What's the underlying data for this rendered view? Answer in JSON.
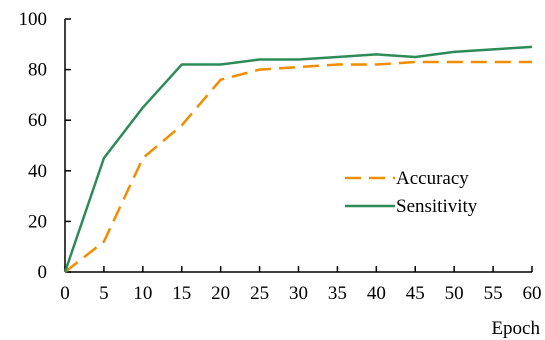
{
  "chart_data": {
    "type": "line",
    "xlabel": "Epoch",
    "ylabel": "",
    "xlim": [
      0,
      60
    ],
    "ylim": [
      0,
      100
    ],
    "xticks": [
      0,
      5,
      10,
      15,
      20,
      25,
      30,
      35,
      40,
      45,
      50,
      55,
      60
    ],
    "yticks": [
      0,
      20,
      40,
      60,
      80,
      100
    ],
    "grid": false,
    "legend": "center-right",
    "x": [
      0,
      5,
      10,
      15,
      20,
      25,
      30,
      35,
      40,
      45,
      50,
      55,
      60
    ],
    "series": [
      {
        "name": "Accuracy",
        "color": "#F28C00",
        "dash": "dashed",
        "values": [
          0,
          12,
          45,
          58,
          76,
          80,
          81,
          82,
          82,
          83,
          83,
          83,
          83
        ]
      },
      {
        "name": "Sensitivity",
        "color": "#2E8B57",
        "dash": "solid",
        "values": [
          0,
          45,
          65,
          82,
          82,
          84,
          84,
          85,
          86,
          85,
          87,
          88,
          89
        ]
      }
    ]
  }
}
